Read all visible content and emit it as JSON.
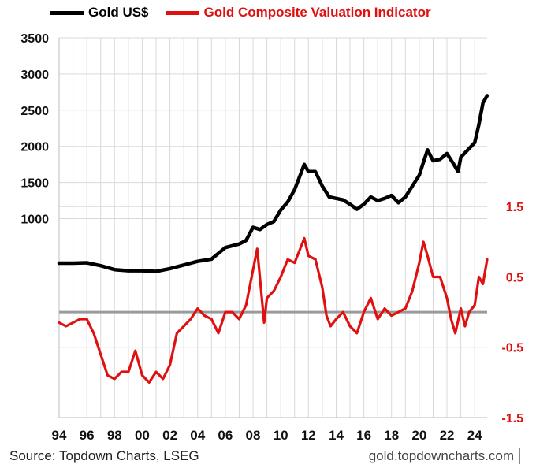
{
  "chart_data": {
    "type": "line",
    "source": "Source: Topdown Charts, LSEG",
    "watermark": "gold.topdowncharts.com",
    "colors": {
      "gold": "#000000",
      "valuation": "#e01010",
      "zero_line": "#9a9a9a",
      "grid": "#d9d9d9",
      "right_axis": "#e01010"
    },
    "x_tick_labels": [
      "94",
      "96",
      "98",
      "00",
      "02",
      "04",
      "06",
      "08",
      "10",
      "12",
      "14",
      "16",
      "18",
      "20",
      "22",
      "24"
    ],
    "x_range": [
      1994,
      2024.9
    ],
    "left_axis": {
      "ticks": [
        1000,
        1500,
        2000,
        2500,
        3000,
        3500
      ],
      "range": [
        -1750,
        3500
      ]
    },
    "right_axis": {
      "ticks": [
        1.5,
        0.5,
        -0.5,
        -1.5
      ],
      "labels": [
        "1.5",
        "0.5",
        "-0.5",
        "-1.5"
      ],
      "range": [
        -1.5,
        3.9
      ]
    },
    "grid": true,
    "legend_position": "top",
    "series": [
      {
        "name": "Gold US$",
        "axis": "left",
        "x": [
          1994,
          1995,
          1996,
          1997,
          1998,
          1999,
          2000,
          2001,
          2002,
          2003,
          2004,
          2005,
          2006,
          2007,
          2007.5,
          2008,
          2008.5,
          2009,
          2009.5,
          2010,
          2010.5,
          2011,
          2011.4,
          2011.7,
          2012,
          2012.5,
          2013,
          2013.5,
          2014,
          2014.5,
          2015,
          2015.5,
          2016,
          2016.5,
          2017,
          2017.5,
          2018,
          2018.5,
          2019,
          2019.5,
          2020,
          2020.3,
          2020.6,
          2021,
          2021.5,
          2022,
          2022.5,
          2022.8,
          2023,
          2023.5,
          2024,
          2024.3,
          2024.6,
          2024.9
        ],
        "y": [
          385,
          385,
          390,
          350,
          295,
          280,
          280,
          270,
          310,
          360,
          410,
          440,
          600,
          650,
          700,
          880,
          850,
          920,
          960,
          1120,
          1230,
          1400,
          1600,
          1750,
          1650,
          1650,
          1450,
          1300,
          1280,
          1260,
          1200,
          1130,
          1200,
          1300,
          1250,
          1280,
          1320,
          1220,
          1300,
          1450,
          1600,
          1780,
          1950,
          1800,
          1820,
          1900,
          1750,
          1650,
          1850,
          1950,
          2050,
          2300,
          2600,
          2700
        ]
      },
      {
        "name": "Gold Composite Valuation Indicator",
        "axis": "right",
        "x": [
          1994,
          1994.5,
          1995,
          1995.5,
          1996,
          1996.5,
          1997,
          1997.5,
          1998,
          1998.5,
          1999,
          1999.5,
          2000,
          2000.5,
          2001,
          2001.5,
          2002,
          2002.5,
          2003,
          2003.5,
          2004,
          2004.5,
          2005,
          2005.5,
          2006,
          2006.5,
          2007,
          2007.5,
          2008,
          2008.3,
          2008.8,
          2009,
          2009.5,
          2010,
          2010.5,
          2011,
          2011.4,
          2011.7,
          2012,
          2012.5,
          2013,
          2013.3,
          2013.6,
          2014,
          2014.5,
          2015,
          2015.5,
          2016,
          2016.5,
          2017,
          2017.5,
          2018,
          2018.5,
          2019,
          2019.5,
          2020,
          2020.3,
          2020.6,
          2021,
          2021.5,
          2022,
          2022.3,
          2022.6,
          2023,
          2023.3,
          2023.6,
          2024,
          2024.3,
          2024.6,
          2024.9
        ],
        "y": [
          -0.15,
          -0.2,
          -0.15,
          -0.1,
          -0.1,
          -0.3,
          -0.6,
          -0.9,
          -0.95,
          -0.85,
          -0.85,
          -0.55,
          -0.9,
          -1.0,
          -0.85,
          -0.95,
          -0.75,
          -0.3,
          -0.2,
          -0.1,
          0.05,
          -0.05,
          -0.1,
          -0.3,
          0.0,
          0.0,
          -0.1,
          0.1,
          0.6,
          0.9,
          -0.15,
          0.2,
          0.3,
          0.5,
          0.75,
          0.7,
          0.9,
          1.05,
          0.8,
          0.75,
          0.35,
          -0.05,
          -0.2,
          -0.1,
          0.0,
          -0.2,
          -0.3,
          0.0,
          0.2,
          -0.1,
          0.05,
          -0.05,
          0.0,
          0.05,
          0.3,
          0.7,
          1.0,
          0.8,
          0.5,
          0.5,
          0.2,
          -0.1,
          -0.3,
          0.05,
          -0.2,
          0.0,
          0.1,
          0.5,
          0.4,
          0.75
        ]
      }
    ]
  }
}
